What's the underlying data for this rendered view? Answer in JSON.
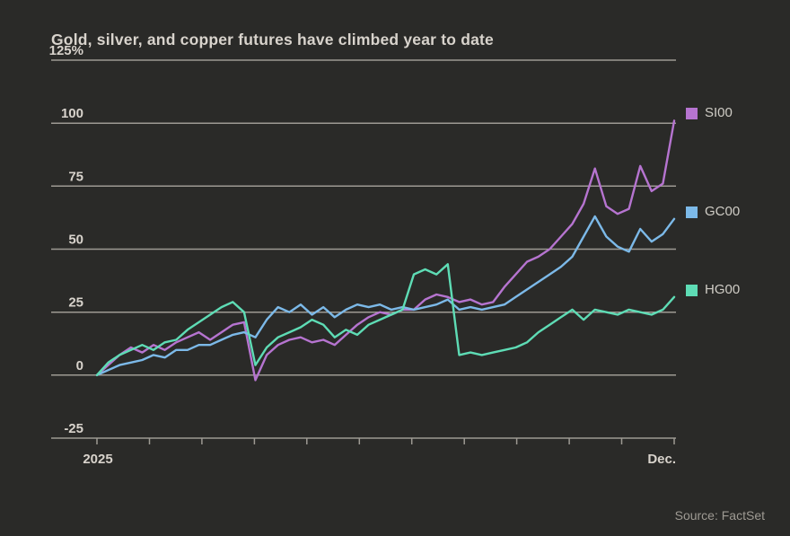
{
  "page": {
    "background": "#2a2a28"
  },
  "chart_data": {
    "type": "line",
    "title": "Gold, silver, and copper futures have climbed year to date",
    "source": "Source: FactSet",
    "x_axis": {
      "start_label": "2025",
      "end_label": "Dec.",
      "tick_count": 12
    },
    "y_axis": {
      "unit": "%",
      "ylim": [
        -25,
        125
      ],
      "ticks": [
        125,
        100,
        75,
        50,
        25,
        0,
        -25
      ],
      "tick_labels": [
        "125%",
        "100",
        "75",
        "50",
        "25",
        "0",
        "-25"
      ],
      "grid": true
    },
    "legend": {
      "position": "right-of-plot",
      "aligned_to": "series-end-values"
    },
    "series": [
      {
        "name": "SI00",
        "color": "#b674d0",
        "values": [
          0,
          4,
          8,
          11,
          9,
          12,
          10,
          13,
          15,
          17,
          14,
          17,
          20,
          21,
          -2,
          8,
          12,
          14,
          15,
          13,
          14,
          12,
          16,
          20,
          23,
          25,
          24,
          26,
          26,
          30,
          32,
          31,
          29,
          30,
          28,
          29,
          35,
          40,
          45,
          47,
          50,
          55,
          60,
          68,
          82,
          67,
          64,
          66,
          83,
          73,
          76,
          101
        ]
      },
      {
        "name": "GC00",
        "color": "#7cb9e8",
        "values": [
          0,
          2,
          4,
          5,
          6,
          8,
          7,
          10,
          10,
          12,
          12,
          14,
          16,
          17,
          15,
          22,
          27,
          25,
          28,
          24,
          27,
          23,
          26,
          28,
          27,
          28,
          26,
          27,
          26,
          27,
          28,
          30,
          26,
          27,
          26,
          27,
          28,
          31,
          34,
          37,
          40,
          43,
          47,
          55,
          63,
          55,
          51,
          49,
          58,
          53,
          56,
          62
        ]
      },
      {
        "name": "HG00",
        "color": "#5edcb5",
        "values": [
          0,
          5,
          8,
          10,
          12,
          10,
          13,
          14,
          18,
          21,
          24,
          27,
          29,
          25,
          4,
          11,
          15,
          17,
          19,
          22,
          20,
          15,
          18,
          16,
          20,
          22,
          24,
          26,
          40,
          42,
          40,
          44,
          8,
          9,
          8,
          9,
          10,
          11,
          13,
          17,
          20,
          23,
          26,
          22,
          26,
          25,
          24,
          26,
          25,
          24,
          26,
          31
        ]
      }
    ],
    "colors": {
      "background": "#2a2a28",
      "text": "#d8d3cc",
      "grid": "#9d9a93",
      "muted": "#9e9a93"
    }
  }
}
